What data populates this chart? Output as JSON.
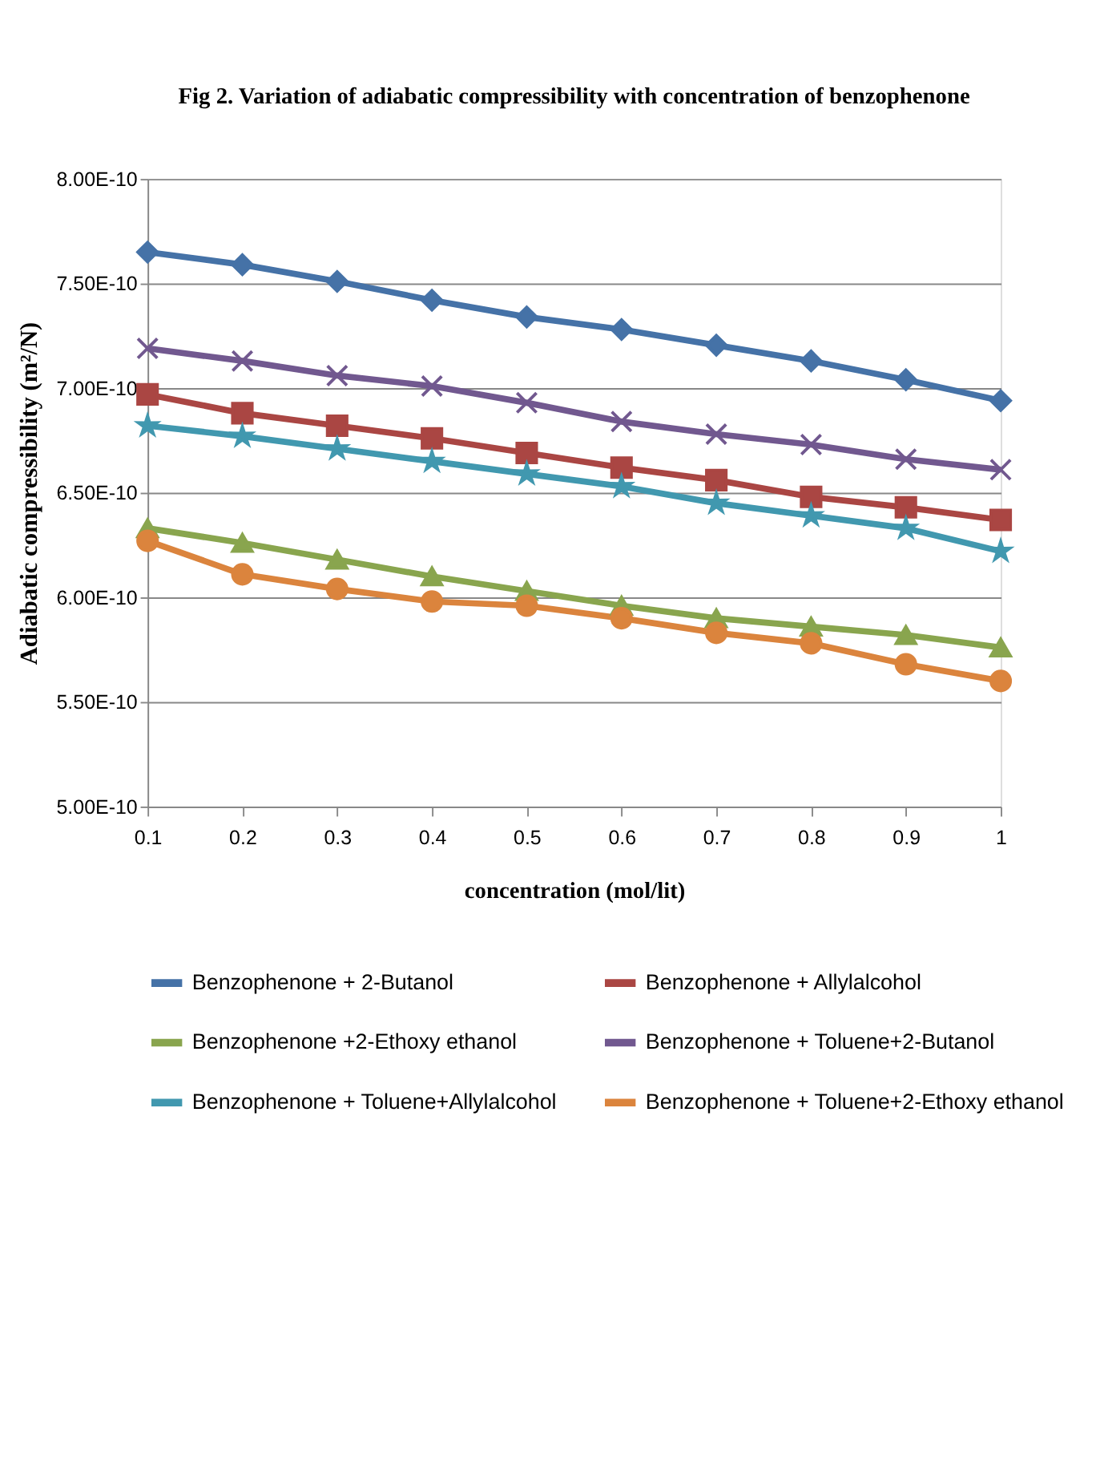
{
  "chart_data": {
    "type": "line",
    "title": "Fig 2. Variation of adiabatic compressibility with concentration of benzophenone",
    "xlabel": "concentration (mol/lit)",
    "ylabel": "Adiabatic compressibility  (m²/N)",
    "categories": [
      "0.1",
      "0.2",
      "0.3",
      "0.4",
      "0.5",
      "0.6",
      "0.7",
      "0.8",
      "0.9",
      "1"
    ],
    "ylim": [
      5e-10,
      8e-10
    ],
    "yticks": [
      {
        "value": 5e-10,
        "label": "5.00E-10"
      },
      {
        "value": 5.5e-10,
        "label": "5.50E-10"
      },
      {
        "value": 6e-10,
        "label": "6.00E-10"
      },
      {
        "value": 6.5e-10,
        "label": "6.50E-10"
      },
      {
        "value": 7e-10,
        "label": "7.00E-10"
      },
      {
        "value": 7.5e-10,
        "label": "7.50E-10"
      },
      {
        "value": 8e-10,
        "label": "8.00E-10"
      }
    ],
    "grid": "y",
    "legend": "bottom",
    "line_style": "solid",
    "series": [
      {
        "name": "Benzophenone + 2-Butanol",
        "color": "#4572a7",
        "marker": "diamond",
        "values": [
          7.65e-10,
          7.59e-10,
          7.51e-10,
          7.42e-10,
          7.34e-10,
          7.28e-10,
          7.205e-10,
          7.13e-10,
          7.04e-10,
          6.94e-10
        ]
      },
      {
        "name": "Benzophenone + Allylalcohol",
        "color": "#aa4643",
        "marker": "square",
        "values": [
          6.97e-10,
          6.88e-10,
          6.82e-10,
          6.76e-10,
          6.69e-10,
          6.62e-10,
          6.56e-10,
          6.48e-10,
          6.43e-10,
          6.37e-10
        ]
      },
      {
        "name": "Benzophenone +2-Ethoxy ethanol",
        "color": "#89a54e",
        "marker": "triangle",
        "values": [
          6.33e-10,
          6.26e-10,
          6.18e-10,
          6.1e-10,
          6.03e-10,
          5.96e-10,
          5.9e-10,
          5.86e-10,
          5.82e-10,
          5.76e-10
        ]
      },
      {
        "name": "Benzophenone + Toluene+2-Butanol",
        "color": "#71588f",
        "marker": "cross",
        "values": [
          7.19e-10,
          7.13e-10,
          7.06e-10,
          7.01e-10,
          6.93e-10,
          6.84e-10,
          6.78e-10,
          6.73e-10,
          6.66e-10,
          6.61e-10
        ]
      },
      {
        "name": "Benzophenone + Toluene+Allylalcohol",
        "color": "#4198af",
        "marker": "star",
        "values": [
          6.82e-10,
          6.77e-10,
          6.71e-10,
          6.65e-10,
          6.59e-10,
          6.53e-10,
          6.45e-10,
          6.39e-10,
          6.33e-10,
          6.22e-10
        ]
      },
      {
        "name": "Benzophenone + Toluene+2-Ethoxy ethanol",
        "color": "#db843d",
        "marker": "circle",
        "values": [
          6.27e-10,
          6.11e-10,
          6.04e-10,
          5.98e-10,
          5.96e-10,
          5.9e-10,
          5.83e-10,
          5.78e-10,
          5.68e-10,
          5.6e-10
        ]
      }
    ]
  }
}
